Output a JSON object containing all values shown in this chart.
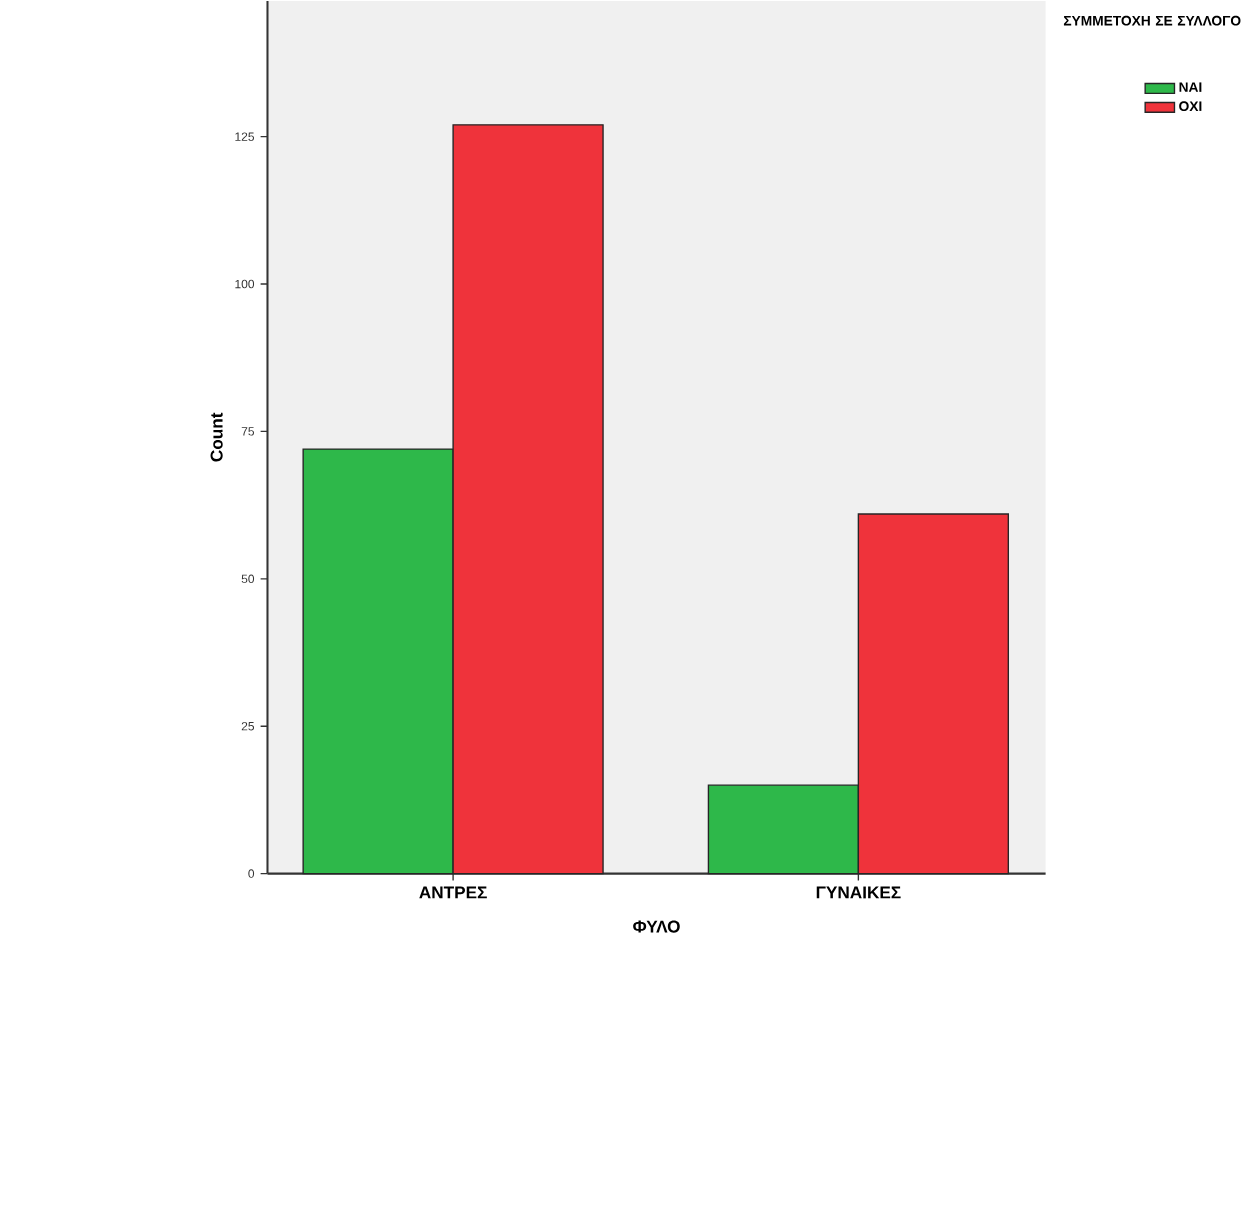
{
  "chart_data": {
    "type": "bar",
    "xlabel": "ΦΥΛΟ",
    "ylabel": "Count",
    "legend_title": "ΣΥΜΜΕΤΟΧΗ ΣΕ ΣΥΛΛΟΓΟ",
    "categories": [
      "ΑΝΤΡΕΣ",
      "ΓΥΝΑΙΚΕΣ"
    ],
    "series": [
      {
        "name": "ΝΑΙ",
        "color": "#2eb84a",
        "values": [
          72,
          15
        ]
      },
      {
        "name": "ΟΧΙ",
        "color": "#ef333b",
        "values": [
          127,
          61
        ]
      }
    ],
    "ylim": [
      0,
      148
    ],
    "yticks": [
      0,
      25,
      50,
      75,
      100,
      125
    ],
    "grid": false,
    "legend": "top right"
  }
}
